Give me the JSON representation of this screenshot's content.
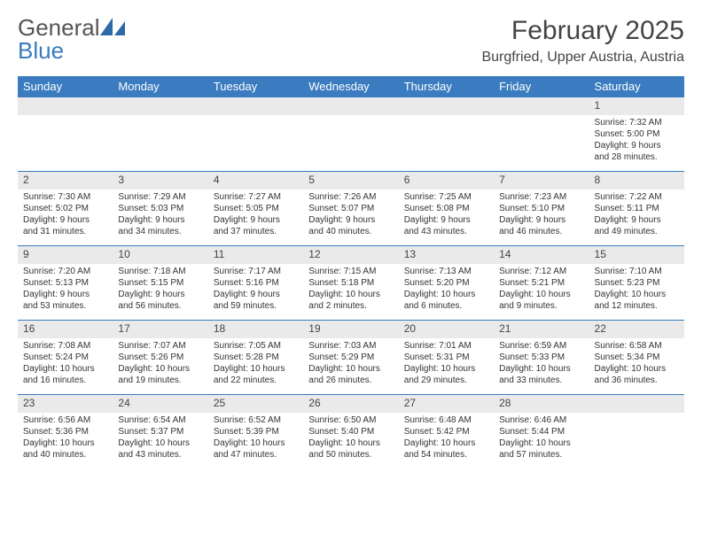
{
  "logo": {
    "line1": "General",
    "line2": "Blue"
  },
  "title": "February 2025",
  "location": "Burgfried, Upper Austria, Austria",
  "colors": {
    "header_bg": "#3a7cbf",
    "daynum_bg": "#eaeaea",
    "border": "#3a7cbf"
  },
  "weekdays": [
    "Sunday",
    "Monday",
    "Tuesday",
    "Wednesday",
    "Thursday",
    "Friday",
    "Saturday"
  ],
  "weeks": [
    [
      null,
      null,
      null,
      null,
      null,
      null,
      {
        "n": "1",
        "sunrise": "Sunrise: 7:32 AM",
        "sunset": "Sunset: 5:00 PM",
        "day1": "Daylight: 9 hours",
        "day2": "and 28 minutes."
      }
    ],
    [
      {
        "n": "2",
        "sunrise": "Sunrise: 7:30 AM",
        "sunset": "Sunset: 5:02 PM",
        "day1": "Daylight: 9 hours",
        "day2": "and 31 minutes."
      },
      {
        "n": "3",
        "sunrise": "Sunrise: 7:29 AM",
        "sunset": "Sunset: 5:03 PM",
        "day1": "Daylight: 9 hours",
        "day2": "and 34 minutes."
      },
      {
        "n": "4",
        "sunrise": "Sunrise: 7:27 AM",
        "sunset": "Sunset: 5:05 PM",
        "day1": "Daylight: 9 hours",
        "day2": "and 37 minutes."
      },
      {
        "n": "5",
        "sunrise": "Sunrise: 7:26 AM",
        "sunset": "Sunset: 5:07 PM",
        "day1": "Daylight: 9 hours",
        "day2": "and 40 minutes."
      },
      {
        "n": "6",
        "sunrise": "Sunrise: 7:25 AM",
        "sunset": "Sunset: 5:08 PM",
        "day1": "Daylight: 9 hours",
        "day2": "and 43 minutes."
      },
      {
        "n": "7",
        "sunrise": "Sunrise: 7:23 AM",
        "sunset": "Sunset: 5:10 PM",
        "day1": "Daylight: 9 hours",
        "day2": "and 46 minutes."
      },
      {
        "n": "8",
        "sunrise": "Sunrise: 7:22 AM",
        "sunset": "Sunset: 5:11 PM",
        "day1": "Daylight: 9 hours",
        "day2": "and 49 minutes."
      }
    ],
    [
      {
        "n": "9",
        "sunrise": "Sunrise: 7:20 AM",
        "sunset": "Sunset: 5:13 PM",
        "day1": "Daylight: 9 hours",
        "day2": "and 53 minutes."
      },
      {
        "n": "10",
        "sunrise": "Sunrise: 7:18 AM",
        "sunset": "Sunset: 5:15 PM",
        "day1": "Daylight: 9 hours",
        "day2": "and 56 minutes."
      },
      {
        "n": "11",
        "sunrise": "Sunrise: 7:17 AM",
        "sunset": "Sunset: 5:16 PM",
        "day1": "Daylight: 9 hours",
        "day2": "and 59 minutes."
      },
      {
        "n": "12",
        "sunrise": "Sunrise: 7:15 AM",
        "sunset": "Sunset: 5:18 PM",
        "day1": "Daylight: 10 hours",
        "day2": "and 2 minutes."
      },
      {
        "n": "13",
        "sunrise": "Sunrise: 7:13 AM",
        "sunset": "Sunset: 5:20 PM",
        "day1": "Daylight: 10 hours",
        "day2": "and 6 minutes."
      },
      {
        "n": "14",
        "sunrise": "Sunrise: 7:12 AM",
        "sunset": "Sunset: 5:21 PM",
        "day1": "Daylight: 10 hours",
        "day2": "and 9 minutes."
      },
      {
        "n": "15",
        "sunrise": "Sunrise: 7:10 AM",
        "sunset": "Sunset: 5:23 PM",
        "day1": "Daylight: 10 hours",
        "day2": "and 12 minutes."
      }
    ],
    [
      {
        "n": "16",
        "sunrise": "Sunrise: 7:08 AM",
        "sunset": "Sunset: 5:24 PM",
        "day1": "Daylight: 10 hours",
        "day2": "and 16 minutes."
      },
      {
        "n": "17",
        "sunrise": "Sunrise: 7:07 AM",
        "sunset": "Sunset: 5:26 PM",
        "day1": "Daylight: 10 hours",
        "day2": "and 19 minutes."
      },
      {
        "n": "18",
        "sunrise": "Sunrise: 7:05 AM",
        "sunset": "Sunset: 5:28 PM",
        "day1": "Daylight: 10 hours",
        "day2": "and 22 minutes."
      },
      {
        "n": "19",
        "sunrise": "Sunrise: 7:03 AM",
        "sunset": "Sunset: 5:29 PM",
        "day1": "Daylight: 10 hours",
        "day2": "and 26 minutes."
      },
      {
        "n": "20",
        "sunrise": "Sunrise: 7:01 AM",
        "sunset": "Sunset: 5:31 PM",
        "day1": "Daylight: 10 hours",
        "day2": "and 29 minutes."
      },
      {
        "n": "21",
        "sunrise": "Sunrise: 6:59 AM",
        "sunset": "Sunset: 5:33 PM",
        "day1": "Daylight: 10 hours",
        "day2": "and 33 minutes."
      },
      {
        "n": "22",
        "sunrise": "Sunrise: 6:58 AM",
        "sunset": "Sunset: 5:34 PM",
        "day1": "Daylight: 10 hours",
        "day2": "and 36 minutes."
      }
    ],
    [
      {
        "n": "23",
        "sunrise": "Sunrise: 6:56 AM",
        "sunset": "Sunset: 5:36 PM",
        "day1": "Daylight: 10 hours",
        "day2": "and 40 minutes."
      },
      {
        "n": "24",
        "sunrise": "Sunrise: 6:54 AM",
        "sunset": "Sunset: 5:37 PM",
        "day1": "Daylight: 10 hours",
        "day2": "and 43 minutes."
      },
      {
        "n": "25",
        "sunrise": "Sunrise: 6:52 AM",
        "sunset": "Sunset: 5:39 PM",
        "day1": "Daylight: 10 hours",
        "day2": "and 47 minutes."
      },
      {
        "n": "26",
        "sunrise": "Sunrise: 6:50 AM",
        "sunset": "Sunset: 5:40 PM",
        "day1": "Daylight: 10 hours",
        "day2": "and 50 minutes."
      },
      {
        "n": "27",
        "sunrise": "Sunrise: 6:48 AM",
        "sunset": "Sunset: 5:42 PM",
        "day1": "Daylight: 10 hours",
        "day2": "and 54 minutes."
      },
      {
        "n": "28",
        "sunrise": "Sunrise: 6:46 AM",
        "sunset": "Sunset: 5:44 PM",
        "day1": "Daylight: 10 hours",
        "day2": "and 57 minutes."
      },
      null
    ]
  ]
}
